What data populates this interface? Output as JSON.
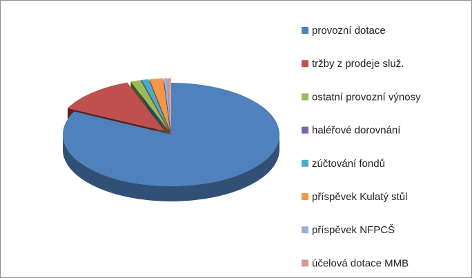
{
  "chart_data": {
    "type": "pie",
    "categories": [
      "provozní dotace",
      "tržby z prodeje služ.",
      "ostatní provozní výnosy",
      "haléřové dorovnání",
      "zúčtování fondů",
      "příspěvek Kulatý stůl",
      "příspěvek NFPCŠ",
      "účelová dotace MMB"
    ],
    "values": [
      82,
      12,
      1.5,
      0.1,
      1,
      2,
      0.5,
      0.5
    ],
    "colors": [
      "#4f81bd",
      "#c0504d",
      "#9bbb59",
      "#8064a2",
      "#4bacc6",
      "#f79646",
      "#95b3d7",
      "#d99694"
    ],
    "legend": "right"
  }
}
